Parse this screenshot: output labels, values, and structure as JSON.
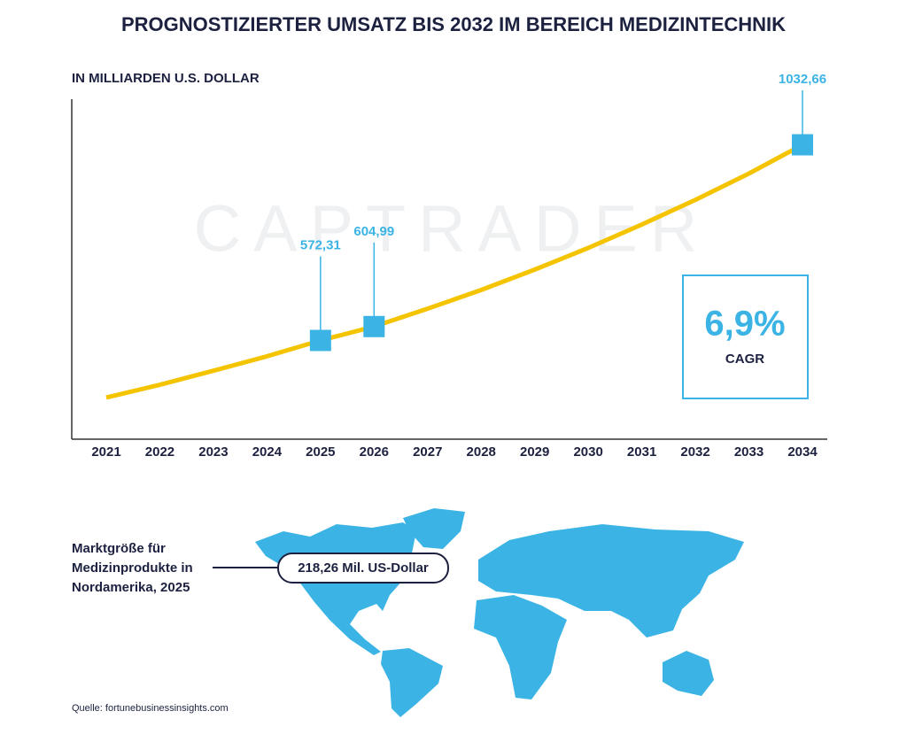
{
  "chart_data": {
    "type": "line",
    "title": "PROGNOSTIZIERTER UMSATZ BIS 2032 IM BEREICH MEDIZINTECHNIK",
    "y_label": "IN MILLIARDEN U.S. DOLLAR",
    "watermark": "CAPTRADER",
    "categories": [
      "2021",
      "2022",
      "2023",
      "2024",
      "2025",
      "2026",
      "2027",
      "2028",
      "2029",
      "2030",
      "2031",
      "2032",
      "2033",
      "2034"
    ],
    "series": [
      {
        "name": "Umsatz",
        "color": "#f5c400",
        "values": [
          438,
          468,
          501,
          535,
          572.31,
          604.99,
          647,
          691,
          739,
          790,
          845,
          903,
          965,
          1032.66
        ],
        "value_labels": [
          null,
          null,
          null,
          null,
          "572,31",
          "604,99",
          null,
          null,
          null,
          null,
          null,
          null,
          null,
          "1032,66"
        ],
        "marker_color": "#3bb4e5"
      }
    ],
    "ylim": [
      340,
      1140
    ],
    "grid": false
  },
  "cagr": {
    "value": "6,9%",
    "label": "CAGR"
  },
  "map": {
    "caption": [
      "Marktgröße für",
      "Medizinprodukte in",
      "Nordamerika, 2025"
    ],
    "callout": "218,26 Mil. US-Dollar"
  },
  "source": "Quelle: fortunebusinessinsights.com"
}
